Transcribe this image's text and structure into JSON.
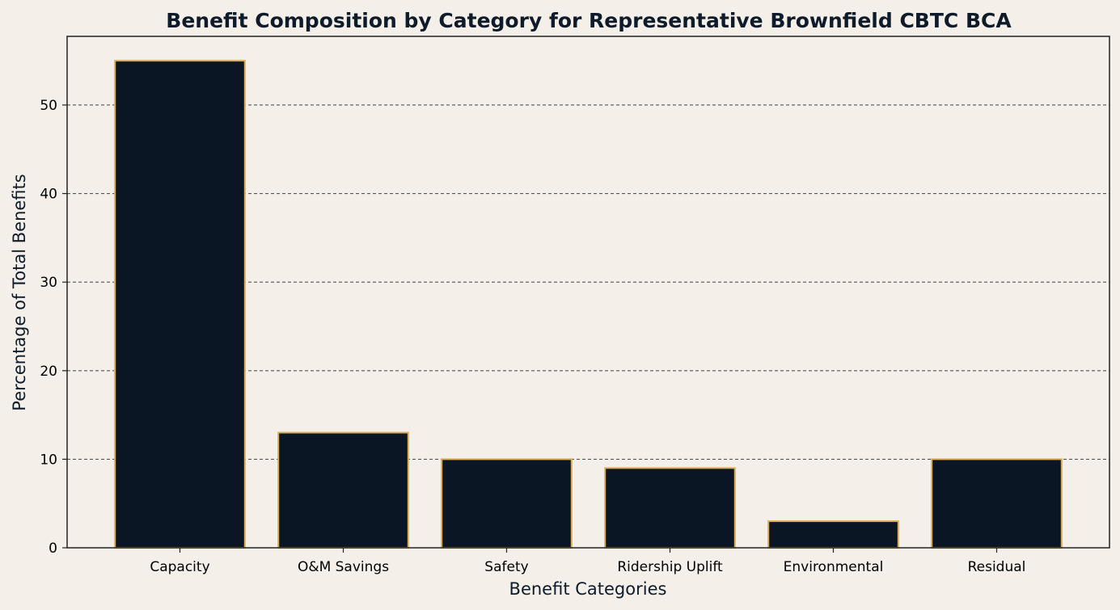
{
  "chart_data": {
    "type": "bar",
    "title": "Benefit Composition by Category for Representative Brownfield CBTC BCA",
    "xlabel": "Benefit Categories",
    "ylabel": "Percentage of Total Benefits",
    "categories": [
      "Capacity",
      "O&M Savings",
      "Safety",
      "Ridership Uplift",
      "Environmental",
      "Residual"
    ],
    "values": [
      55,
      13,
      10,
      9,
      3,
      10
    ],
    "ylim": [
      0,
      57.75
    ],
    "yticks": [
      0,
      10,
      20,
      30,
      40,
      50
    ],
    "grid": "y-dashed",
    "legend": "none",
    "colors": {
      "background": "#f4efe8",
      "bar_fill": "#0b1625",
      "bar_edge": "#d9aa55",
      "grid": "#555555",
      "axis": "#222222",
      "title": "#0d1b2a"
    }
  }
}
